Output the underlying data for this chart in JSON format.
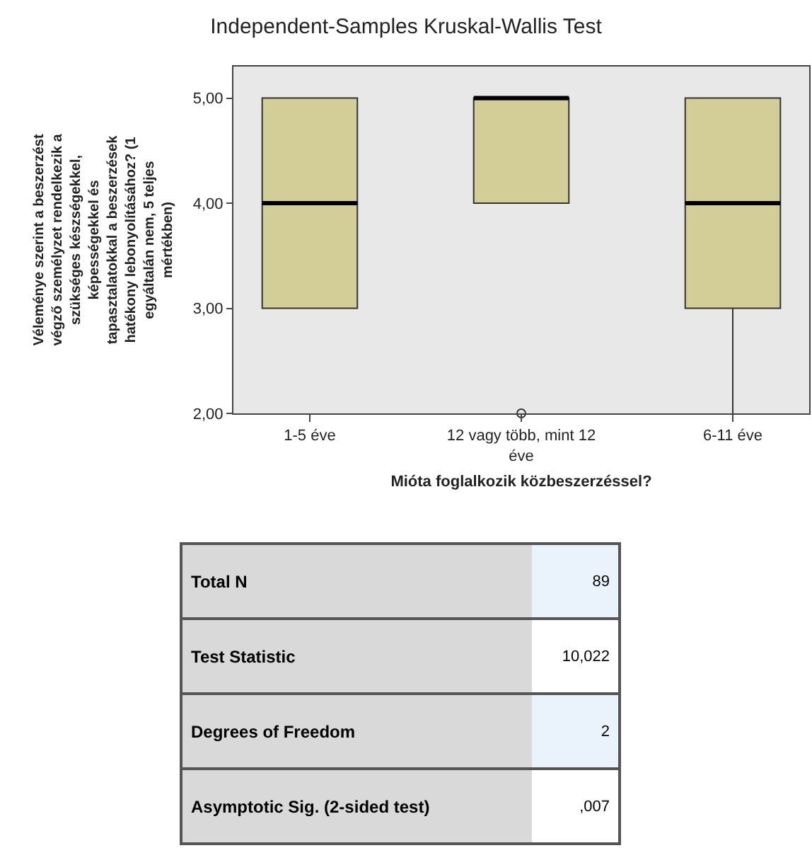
{
  "chart_data": [
    {
      "type": "box",
      "title": "Independent-Samples Kruskal-Wallis Test",
      "xlabel": "Mióta foglalkozik közbeszerzéssel?",
      "ylabel": "Véleménye szerint a beszerzést végző személyzet rendelkezik a szükséges készségekkel, képességekkel és tapasztalatokkal a beszerzések hatékony lebonyolításához? (1 egyáltalán nem, 5 teljes mértékben)",
      "categories": [
        "1-5 éve",
        "12 vagy több, mint 12 éve",
        "6-11 éve"
      ],
      "color": "#d3cd98",
      "boxes": [
        {
          "low": 3,
          "q1": 3,
          "median": 4,
          "q3": 5,
          "high": 5
        },
        {
          "low": 4,
          "q1": 4,
          "median": 5,
          "q3": 5,
          "high": 5,
          "outliers": [
            2
          ]
        },
        {
          "low": 2,
          "q1": 3,
          "median": 4,
          "q3": 5,
          "high": 5
        }
      ],
      "ylim": [
        2,
        5.3
      ],
      "yticks": [
        {
          "value": 2,
          "label": "2,00"
        },
        {
          "value": 3,
          "label": "3,00"
        },
        {
          "value": 4,
          "label": "4,00"
        },
        {
          "value": 5,
          "label": "5,00"
        }
      ],
      "grid": false
    },
    {
      "type": "other",
      "categories": [
        "Total N",
        "Test Statistic",
        "Degrees of Freedom",
        "Asymptotic Sig. (2-sided test)"
      ],
      "value_labels": [
        "89",
        "10,022",
        "2",
        ",007"
      ]
    }
  ]
}
